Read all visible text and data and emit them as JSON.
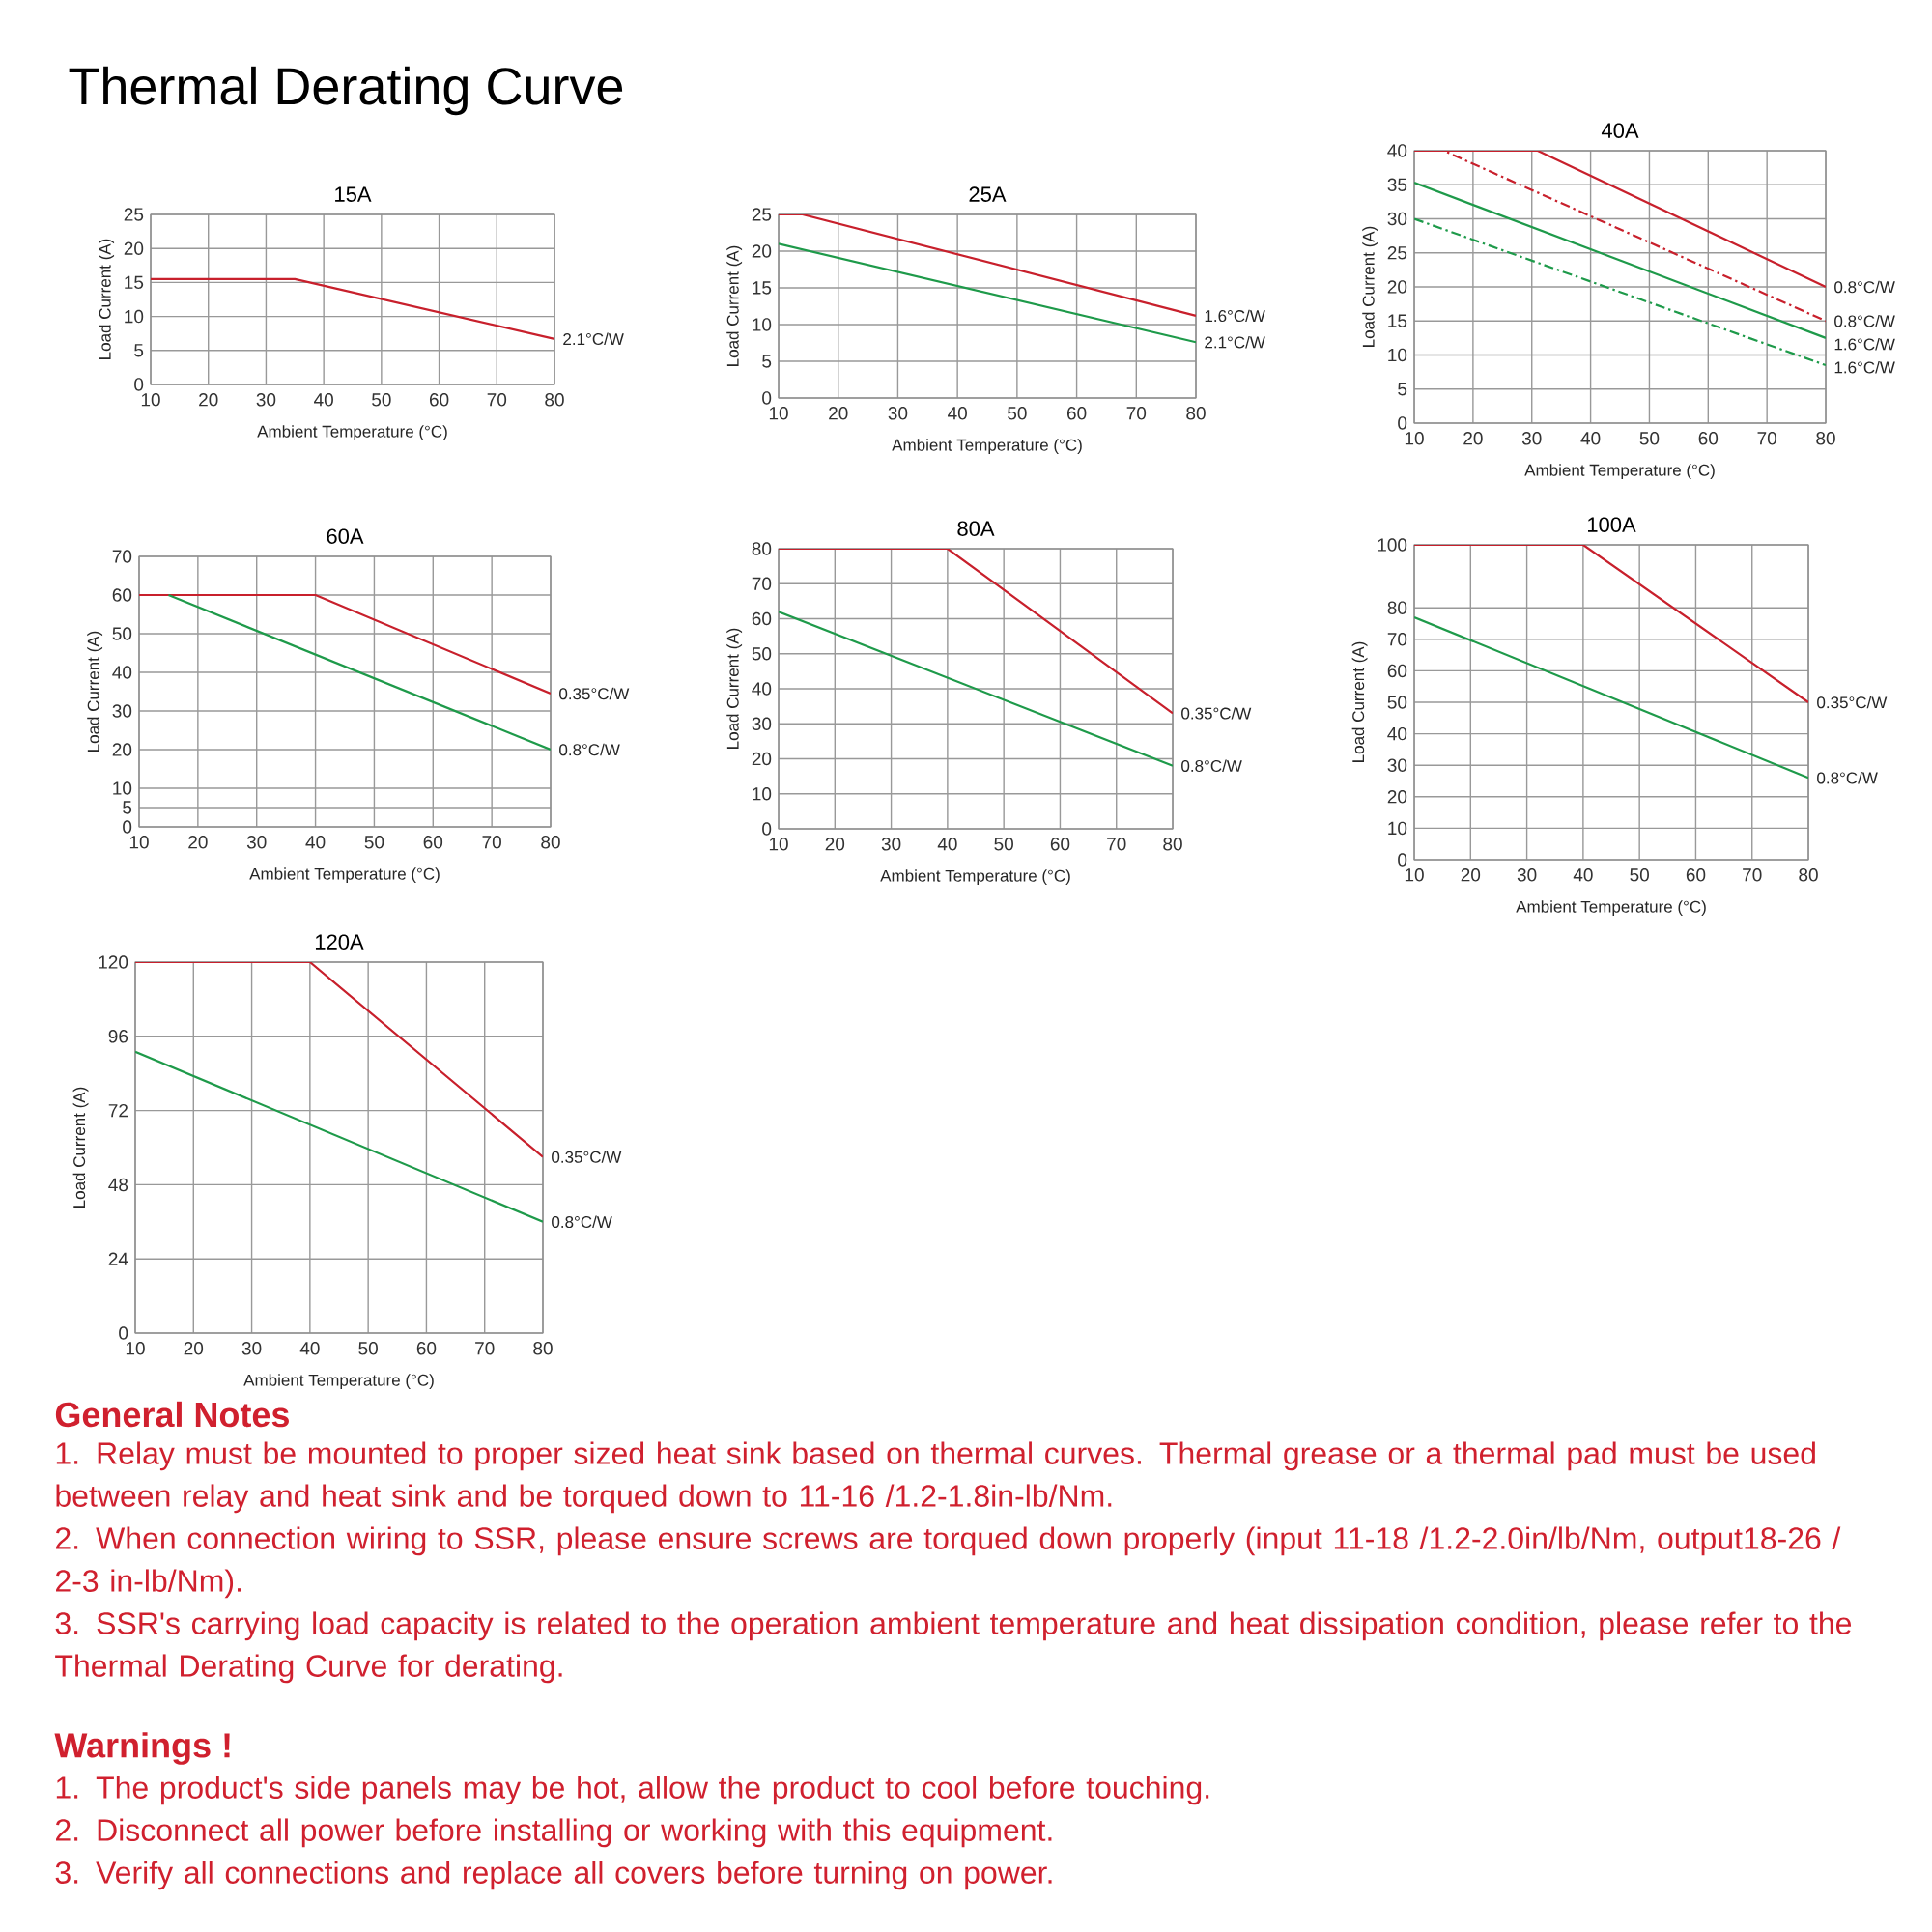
{
  "chart_data": [
    {
      "type": "other",
      "title": "Thermal Derating Curve"
    },
    {
      "type": "line",
      "title": "15A",
      "xlabel": "Ambient Temperature (°C)",
      "ylabel": "Load Current (A)",
      "xlim": [
        10,
        80
      ],
      "xticks": [
        10,
        20,
        30,
        40,
        50,
        60,
        70,
        80
      ],
      "ylim": [
        0,
        25
      ],
      "yticks": [
        0,
        5,
        10,
        15,
        20,
        25
      ],
      "grid": true,
      "series": [
        {
          "name": "2.1°C/W",
          "color": "#c8202c",
          "x": [
            10,
            35,
            80
          ],
          "values": [
            15.5,
            15.5,
            6.7
          ]
        }
      ]
    },
    {
      "type": "line",
      "title": "25A",
      "xlabel": "Ambient Temperature (°C)",
      "ylabel": "Load Current (A)",
      "xlim": [
        10,
        80
      ],
      "xticks": [
        10,
        20,
        30,
        40,
        50,
        60,
        70,
        80
      ],
      "ylim": [
        0,
        25
      ],
      "yticks": [
        0,
        5,
        10,
        15,
        20,
        25
      ],
      "grid": true,
      "series": [
        {
          "name": "1.6°C/W",
          "color": "#c8202c",
          "x": [
            10,
            14,
            80
          ],
          "values": [
            25,
            25,
            11.2
          ]
        },
        {
          "name": "2.1°C/W",
          "color": "#1e9a4a",
          "x": [
            10,
            80
          ],
          "values": [
            21,
            7.6
          ]
        }
      ]
    },
    {
      "type": "line",
      "title": "40A",
      "xlabel": "Ambient Temperature (°C)",
      "ylabel": "Load Current (A)",
      "xlim": [
        10,
        80
      ],
      "xticks": [
        10,
        20,
        30,
        40,
        50,
        60,
        70,
        80
      ],
      "ylim": [
        0,
        40
      ],
      "yticks": [
        0,
        5,
        10,
        15,
        20,
        25,
        30,
        35,
        40
      ],
      "grid": true,
      "series": [
        {
          "name": "0.8°C/W",
          "color": "#c8202c",
          "x": [
            10,
            31,
            80
          ],
          "values": [
            40,
            40,
            20
          ]
        },
        {
          "name": "0.8°C/W",
          "color": "#c8202c",
          "line_style": "dashed",
          "x": [
            10,
            15,
            80
          ],
          "values": [
            40,
            40,
            15
          ]
        },
        {
          "name": "1.6°C/W",
          "color": "#1e9a4a",
          "x": [
            10,
            80
          ],
          "values": [
            35.3,
            12.5
          ]
        },
        {
          "name": "1.6°C/W",
          "color": "#1e9a4a",
          "line_style": "dashed",
          "x": [
            10,
            80
          ],
          "values": [
            30,
            8.5
          ]
        }
      ]
    },
    {
      "type": "line",
      "title": "60A",
      "xlabel": "Ambient Temperature (°C)",
      "ylabel": "Load Current (A)",
      "xlim": [
        10,
        80
      ],
      "xticks": [
        10,
        20,
        30,
        40,
        50,
        60,
        70,
        80
      ],
      "ylim": [
        0,
        70
      ],
      "yticks": [
        0,
        5,
        10,
        20,
        30,
        40,
        50,
        60,
        70
      ],
      "grid": true,
      "series": [
        {
          "name": "0.35°C/W",
          "color": "#c8202c",
          "x": [
            10,
            40,
            80
          ],
          "values": [
            60,
            60,
            34.5
          ]
        },
        {
          "name": "0.8°C/W",
          "color": "#1e9a4a",
          "x": [
            15,
            80
          ],
          "values": [
            60,
            20
          ]
        }
      ]
    },
    {
      "type": "line",
      "title": "80A",
      "xlabel": "Ambient Temperature (°C)",
      "ylabel": "Load Current (A)",
      "xlim": [
        10,
        80
      ],
      "xticks": [
        10,
        20,
        30,
        40,
        50,
        60,
        70,
        80
      ],
      "ylim": [
        0,
        80
      ],
      "yticks": [
        0,
        10,
        20,
        30,
        40,
        50,
        60,
        70,
        80
      ],
      "grid": true,
      "series": [
        {
          "name": "0.35°C/W",
          "color": "#c8202c",
          "x": [
            10,
            40,
            80
          ],
          "values": [
            80,
            80,
            33
          ]
        },
        {
          "name": "0.8°C/W",
          "color": "#1e9a4a",
          "x": [
            10,
            80
          ],
          "values": [
            62,
            18
          ]
        }
      ]
    },
    {
      "type": "line",
      "title": "100A",
      "xlabel": "Ambient Temperature (°C)",
      "ylabel": "Load Current (A)",
      "xlim": [
        10,
        80
      ],
      "xticks": [
        10,
        20,
        30,
        40,
        50,
        60,
        70,
        80
      ],
      "ylim": [
        0,
        100
      ],
      "yticks": [
        0,
        10,
        20,
        30,
        40,
        50,
        60,
        70,
        80,
        100
      ],
      "grid": true,
      "series": [
        {
          "name": "0.35°C/W",
          "color": "#c8202c",
          "x": [
            10,
            40,
            80
          ],
          "values": [
            100,
            100,
            50
          ]
        },
        {
          "name": "0.8°C/W",
          "color": "#1e9a4a",
          "x": [
            10,
            80
          ],
          "values": [
            77,
            26
          ]
        }
      ]
    },
    {
      "type": "line",
      "title": "120A",
      "xlabel": "Ambient Temperature (°C)",
      "ylabel": "Load Current (A)",
      "xlim": [
        10,
        80
      ],
      "xticks": [
        10,
        20,
        30,
        40,
        50,
        60,
        70,
        80
      ],
      "ylim": [
        0,
        120
      ],
      "yticks": [
        0,
        24,
        48,
        72,
        96,
        120
      ],
      "grid": true,
      "series": [
        {
          "name": "0.35°C/W",
          "color": "#c8202c",
          "x": [
            10,
            40,
            80
          ],
          "values": [
            120,
            120,
            57
          ]
        },
        {
          "name": "0.8°C/W",
          "color": "#1e9a4a",
          "x": [
            10,
            80
          ],
          "values": [
            91,
            36
          ]
        }
      ]
    },
    {
      "type": "other",
      "title": "General Notes",
      "annotations": [
        "1. Relay must be mounted to proper sized heat sink based on thermal curves. Thermal grease or a thermal pad must be used between relay and heat sink and be torqued down to 11-16 /1.2-1.8in-lb/Nm.",
        "2. When connection wiring to SSR, please ensure screws are torqued down properly (input 11-18 /1.2-2.0in/lb/Nm, output18-26 / 2-3 in-lb/Nm).",
        "3. SSR's carrying load capacity is related to the operation ambient temperature and heat dissipation condition, please refer to the Thermal Derating Curve for derating."
      ]
    },
    {
      "type": "other",
      "title": "Warnings !",
      "annotations": [
        "1. The product's side panels may be hot, allow the product to cool before touching.",
        "2. Disconnect all power before installing or working with this equipment.",
        "3. Verify all connections and replace all covers before turning on power."
      ]
    }
  ]
}
